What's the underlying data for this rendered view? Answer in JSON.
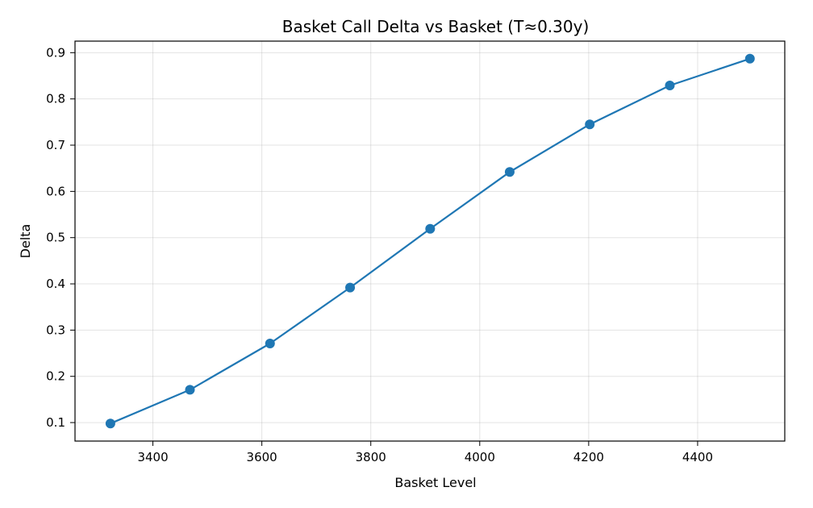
{
  "chart_data": {
    "type": "line",
    "title": "Basket Call Delta vs Basket (T≈0.30y)",
    "xlabel": "Basket Level",
    "ylabel": "Delta",
    "xlim": [
      3257,
      4560
    ],
    "ylim": [
      0.06,
      0.925
    ],
    "xticks": [
      3400,
      3600,
      3800,
      4000,
      4200,
      4400
    ],
    "yticks": [
      0.1,
      0.2,
      0.3,
      0.4,
      0.5,
      0.6,
      0.7,
      0.8,
      0.9
    ],
    "grid": true,
    "color": "#1f77b4",
    "x": [
      3322,
      3468,
      3615,
      3762,
      3909,
      4055,
      4202,
      4349,
      4496
    ],
    "y": [
      0.098,
      0.171,
      0.271,
      0.392,
      0.519,
      0.642,
      0.745,
      0.829,
      0.887
    ]
  }
}
